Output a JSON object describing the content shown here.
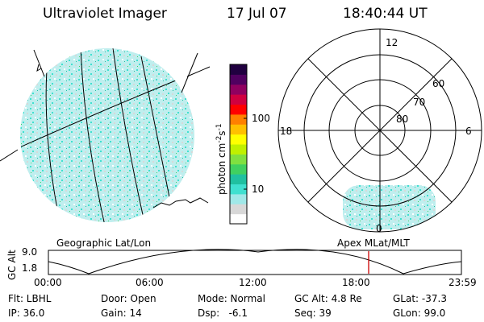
{
  "header": {
    "instrument": "Ultraviolet Imager",
    "date": "17 Jul 07",
    "time": "18:40:44 UT"
  },
  "colorbar": {
    "label_base": "photon cm",
    "label_exp1": "-2",
    "label_mid": "s",
    "label_exp2": "-1",
    "ticks": [
      {
        "label": "100",
        "value": 100
      },
      {
        "label": "10",
        "value": 10
      }
    ],
    "colors": [
      "#ffffff",
      "#d8d8d8",
      "#a0e8e8",
      "#40e0d0",
      "#20c0a0",
      "#40d060",
      "#80e040",
      "#c0f000",
      "#ffff00",
      "#ffc000",
      "#ff8000",
      "#ff0000",
      "#d00040",
      "#900060",
      "#500060",
      "#200040"
    ]
  },
  "polar_plot": {
    "mlt_labels": [
      {
        "label": "12",
        "pos": "top"
      },
      {
        "label": "18",
        "pos": "left"
      },
      {
        "label": "6",
        "pos": "right"
      },
      {
        "label": "0",
        "pos": "bottom"
      }
    ],
    "lat_labels": [
      "60",
      "70",
      "80"
    ]
  },
  "panel_labels": {
    "left": "Geographic Lat/Lon",
    "right": "Apex MLat/MLT"
  },
  "altitude_strip": {
    "ylabel": "GC Alt",
    "y_ticks": [
      "9.0",
      "1.8"
    ],
    "x_ticks": [
      "00:00",
      "06:00",
      "12:00",
      "18:00",
      "23:59"
    ],
    "marker_color": "#cc0000"
  },
  "info_rows": [
    [
      {
        "text": "Flt: LBHL"
      },
      {
        "text": "Door: Open"
      },
      {
        "text": "Mode: Normal"
      },
      {
        "text": "GC Alt: 4.8 Re"
      },
      {
        "text": "GLat: -37.3"
      }
    ],
    [
      {
        "text": "IP: 36.0"
      },
      {
        "text": "Gain: 14"
      },
      {
        "text": "Dsp:   -6.1"
      },
      {
        "text": "Seq: 39"
      },
      {
        "text": "GLon: 99.0"
      }
    ]
  ]
}
